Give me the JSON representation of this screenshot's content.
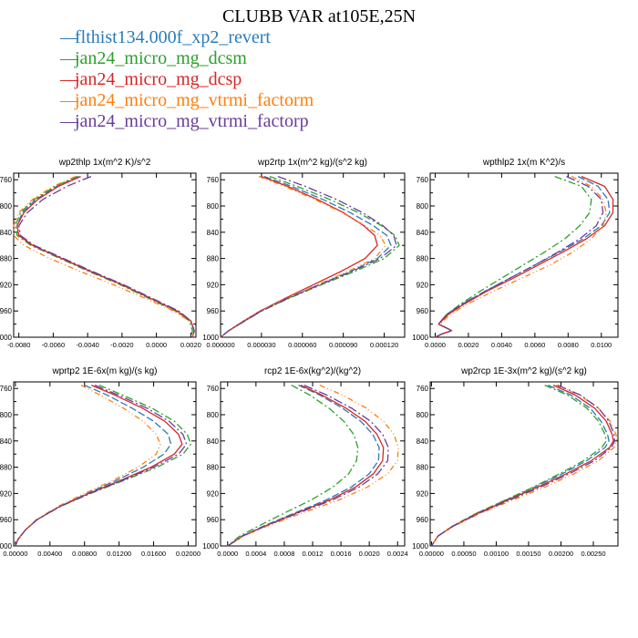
{
  "title": "CLUBB VAR at105E,25N",
  "legend": [
    {
      "label": "flthist134.000f_xp2_revert",
      "color": "#2b7bb9"
    },
    {
      "label": "jan24_micro_mg_dcsm",
      "color": "#2ca02c"
    },
    {
      "label": "jan24_micro_mg_dcsp",
      "color": "#d62728"
    },
    {
      "label": "jan24_micro_mg_vtrmi_factorm",
      "color": "#ff7f0e"
    },
    {
      "label": "jan24_micro_mg_vtrmi_factorp",
      "color": "#6a3d9a"
    }
  ],
  "chart_data": [
    {
      "type": "line",
      "title": "wp2thlp   1x(m^2 K)/s^2",
      "ylabel": "",
      "xlabel": "",
      "ylim": [
        1000,
        750
      ],
      "yticks": [
        760,
        800,
        840,
        880,
        920,
        960,
        1000
      ],
      "xlim": [
        -0.0083,
        0.0023
      ],
      "xticks": [
        -0.008,
        -0.006,
        -0.004,
        -0.002,
        0.0,
        0.002
      ],
      "xtick_labels": [
        "-0.0080",
        "-0.0060",
        "-0.0040",
        "-0.0020",
        "0.0000",
        "0.0020"
      ],
      "y": [
        755,
        770,
        790,
        810,
        830,
        845,
        860,
        880,
        900,
        920,
        940,
        960,
        975,
        990,
        1000
      ],
      "series": [
        {
          "values": [
            -0.0045,
            -0.0058,
            -0.007,
            -0.0078,
            -0.0081,
            -0.008,
            -0.0072,
            -0.0055,
            -0.0038,
            -0.002,
            -0.0004,
            0.0012,
            0.002,
            0.0022,
            0.0021
          ]
        },
        {
          "values": [
            -0.0046,
            -0.0059,
            -0.0071,
            -0.0079,
            -0.0082,
            -0.0081,
            -0.0073,
            -0.0056,
            -0.0039,
            -0.0021,
            -0.0005,
            0.0011,
            0.0019,
            0.0021,
            0.002
          ]
        },
        {
          "values": [
            -0.0044,
            -0.0057,
            -0.0069,
            -0.0077,
            -0.0081,
            -0.008,
            -0.0072,
            -0.0055,
            -0.0038,
            -0.002,
            -0.0004,
            0.0012,
            0.002,
            0.0022,
            0.0021
          ]
        },
        {
          "values": [
            -0.0047,
            -0.006,
            -0.0072,
            -0.008,
            -0.0083,
            -0.0083,
            -0.0077,
            -0.0062,
            -0.0044,
            -0.0025,
            -0.0007,
            0.001,
            0.0019,
            0.0022,
            0.0021
          ]
        },
        {
          "values": [
            -0.0038,
            -0.0052,
            -0.0066,
            -0.0075,
            -0.008,
            -0.0079,
            -0.0071,
            -0.0054,
            -0.0037,
            -0.0019,
            -0.0003,
            0.0013,
            0.002,
            0.0022,
            0.0021
          ]
        }
      ]
    },
    {
      "type": "line",
      "title": "wp2rtp   1x(m^2 kg)/(s^2 kg)",
      "ylabel": "",
      "xlabel": "",
      "ylim": [
        1000,
        750
      ],
      "yticks": [
        760,
        800,
        840,
        880,
        920,
        960,
        1000
      ],
      "xlim": [
        0.0,
        0.000135
      ],
      "xticks": [
        0.0,
        3e-05,
        6e-05,
        9e-05,
        0.00012
      ],
      "xtick_labels": [
        "0.000000",
        "0.000030",
        "0.000060",
        "0.000090",
        "0.000120"
      ],
      "y": [
        755,
        770,
        790,
        810,
        830,
        845,
        860,
        880,
        900,
        920,
        940,
        960,
        975,
        990,
        1000
      ],
      "series": [
        {
          "values": [
            3.2e-05,
            5.2e-05,
            7.5e-05,
            9.5e-05,
            0.000112,
            0.000122,
            0.000125,
            0.000115,
            9.5e-05,
            7.2e-05,
            5e-05,
            3e-05,
            1.8e-05,
            6e-06,
            0.0
          ]
        },
        {
          "values": [
            3.6e-05,
            5.6e-05,
            8e-05,
            0.000101,
            0.000118,
            0.000128,
            0.000131,
            0.00012,
            9.8e-05,
            7.4e-05,
            5.1e-05,
            3e-05,
            1.8e-05,
            6e-06,
            0.0
          ]
        },
        {
          "values": [
            3e-05,
            4.9e-05,
            7.1e-05,
            9e-05,
            0.000105,
            0.000113,
            0.000115,
            0.000106,
            8.8e-05,
            6.8e-05,
            4.8e-05,
            2.9e-05,
            1.7e-05,
            6e-06,
            0.0
          ]
        },
        {
          "values": [
            2.8e-05,
            4.7e-05,
            6.9e-05,
            8.9e-05,
            0.000106,
            0.000117,
            0.000121,
            0.000113,
            9.3e-05,
            7.1e-05,
            4.9e-05,
            2.9e-05,
            1.7e-05,
            6e-06,
            0.0
          ]
        },
        {
          "values": [
            4.2e-05,
            6.2e-05,
            8.5e-05,
            0.000104,
            0.000119,
            0.000127,
            0.000129,
            0.000117,
            9.6e-05,
            7.3e-05,
            5e-05,
            3e-05,
            1.8e-05,
            6e-06,
            0.0
          ]
        }
      ]
    },
    {
      "type": "line",
      "title": "wpthlp2   1x(m K^2)/s",
      "ylabel": "",
      "xlabel": "",
      "ylim": [
        1000,
        750
      ],
      "yticks": [
        760,
        800,
        840,
        880,
        920,
        960,
        1000
      ],
      "xlim": [
        -0.0003,
        0.011
      ],
      "xticks": [
        0.0,
        0.002,
        0.004,
        0.006,
        0.008,
        0.01
      ],
      "xtick_labels": [
        "0.0000",
        "0.0020",
        "0.0040",
        "0.0060",
        "0.0080",
        "0.0100"
      ],
      "y": [
        755,
        770,
        790,
        810,
        830,
        850,
        870,
        890,
        910,
        930,
        950,
        965,
        980,
        990,
        995,
        1000
      ],
      "series": [
        {
          "values": [
            0.0086,
            0.0098,
            0.0104,
            0.0105,
            0.01,
            0.0089,
            0.0075,
            0.006,
            0.0045,
            0.003,
            0.0016,
            0.0007,
            0.0002,
            0.001,
            0.0004,
            0.0
          ]
        },
        {
          "values": [
            0.0072,
            0.0088,
            0.0094,
            0.0093,
            0.0087,
            0.0078,
            0.0066,
            0.0053,
            0.004,
            0.0027,
            0.0015,
            0.0007,
            0.0002,
            0.001,
            0.0004,
            0.0
          ]
        },
        {
          "values": [
            0.0088,
            0.0102,
            0.0107,
            0.0107,
            0.0102,
            0.0091,
            0.0077,
            0.0062,
            0.0047,
            0.0031,
            0.0017,
            0.0008,
            0.0002,
            0.001,
            0.0004,
            0.0
          ]
        },
        {
          "values": [
            0.0082,
            0.0094,
            0.0101,
            0.0103,
            0.0101,
            0.0094,
            0.0083,
            0.0069,
            0.0052,
            0.0035,
            0.0019,
            0.0009,
            0.0003,
            0.001,
            0.0004,
            0.0
          ]
        },
        {
          "values": [
            0.0079,
            0.0092,
            0.01,
            0.0101,
            0.0097,
            0.0087,
            0.0074,
            0.006,
            0.0045,
            0.003,
            0.0016,
            0.0007,
            0.0002,
            0.001,
            0.0004,
            0.0
          ]
        }
      ]
    },
    {
      "type": "line",
      "title": "wprtp2   1E-6x(m kg)/(s kg)",
      "ylabel": "",
      "xlabel": "",
      "ylim": [
        1000,
        750
      ],
      "yticks": [
        760,
        800,
        840,
        880,
        920,
        960,
        1000
      ],
      "xlim": [
        -0.0002,
        0.0209
      ],
      "xticks": [
        0.0,
        0.004,
        0.008,
        0.012,
        0.016,
        0.02
      ],
      "xtick_labels": [
        "0.00000",
        "0.00400",
        "0.00800",
        "0.01200",
        "0.01600",
        "0.02000"
      ],
      "y": [
        755,
        770,
        790,
        810,
        830,
        845,
        860,
        880,
        900,
        920,
        940,
        960,
        975,
        990,
        1000
      ],
      "series": [
        {
          "values": [
            0.008,
            0.0106,
            0.0135,
            0.016,
            0.0177,
            0.018,
            0.0172,
            0.0148,
            0.0117,
            0.0083,
            0.0051,
            0.0025,
            0.0012,
            0.0003,
            0.0
          ]
        },
        {
          "values": [
            0.0097,
            0.0124,
            0.0158,
            0.0184,
            0.0199,
            0.0203,
            0.0194,
            0.0164,
            0.0126,
            0.0087,
            0.0052,
            0.0025,
            0.0012,
            0.0003,
            0.0
          ]
        },
        {
          "values": [
            0.0088,
            0.0115,
            0.0147,
            0.0173,
            0.0189,
            0.0193,
            0.0184,
            0.0157,
            0.0122,
            0.0085,
            0.0051,
            0.0025,
            0.0012,
            0.0003,
            0.0
          ]
        },
        {
          "values": [
            0.0076,
            0.0098,
            0.0125,
            0.0148,
            0.0163,
            0.0168,
            0.0163,
            0.0142,
            0.0113,
            0.008,
            0.0049,
            0.0024,
            0.0012,
            0.0003,
            0.0
          ]
        },
        {
          "values": [
            0.0092,
            0.0119,
            0.0152,
            0.0178,
            0.0194,
            0.0198,
            0.0189,
            0.016,
            0.0124,
            0.0086,
            0.0051,
            0.0025,
            0.0012,
            0.0003,
            0.0
          ]
        }
      ]
    },
    {
      "type": "line",
      "title": "rcp2   1E-6x(kg^2)/(kg^2)",
      "ylabel": "",
      "xlabel": "",
      "ylim": [
        1000,
        750
      ],
      "yticks": [
        760,
        800,
        840,
        880,
        920,
        960,
        1000
      ],
      "xlim": [
        -0.0001,
        0.0025
      ],
      "xticks": [
        0.0,
        0.0004,
        0.0008,
        0.0012,
        0.0016,
        0.002,
        0.0024
      ],
      "xtick_labels": [
        "0.0000",
        "0.0004",
        "0.0008",
        "0.0012",
        "0.0016",
        "0.0020",
        "0.0024"
      ],
      "y": [
        755,
        770,
        790,
        810,
        830,
        850,
        870,
        890,
        910,
        930,
        950,
        970,
        985,
        1000
      ],
      "series": [
        {
          "values": [
            0.001,
            0.0013,
            0.00162,
            0.00188,
            0.00205,
            0.00214,
            0.00213,
            0.002,
            0.00175,
            0.00139,
            0.00094,
            0.0005,
            0.0002,
            0.0
          ]
        },
        {
          "values": [
            0.0009,
            0.00116,
            0.00143,
            0.00164,
            0.00178,
            0.00184,
            0.00182,
            0.00171,
            0.00149,
            0.00118,
            0.0008,
            0.00043,
            0.00017,
            0.0
          ]
        },
        {
          "values": [
            0.00103,
            0.00133,
            0.00167,
            0.00194,
            0.00211,
            0.0022,
            0.00219,
            0.00206,
            0.00181,
            0.00144,
            0.00097,
            0.00052,
            0.00021,
            0.0
          ]
        },
        {
          "values": [
            0.0013,
            0.00162,
            0.00196,
            0.0022,
            0.00235,
            0.00241,
            0.0024,
            0.00226,
            0.00198,
            0.00157,
            0.00105,
            0.00055,
            0.00022,
            0.0
          ]
        },
        {
          "values": [
            0.00108,
            0.0014,
            0.00175,
            0.00202,
            0.00219,
            0.00227,
            0.00226,
            0.00212,
            0.00186,
            0.00148,
            0.00099,
            0.00053,
            0.00021,
            0.0
          ]
        }
      ]
    },
    {
      "type": "line",
      "title": "wp2rcp   1E-3x(m^2 kg)/(s^2 kg)",
      "ylabel": "",
      "xlabel": "",
      "ylim": [
        1000,
        750
      ],
      "yticks": [
        760,
        800,
        840,
        880,
        920,
        960,
        1000
      ],
      "xlim": [
        -2e-05,
        0.00288
      ],
      "xticks": [
        0.0,
        0.0005,
        0.001,
        0.0015,
        0.002,
        0.0025
      ],
      "xtick_labels": [
        "0.00000",
        "0.00050",
        "0.00100",
        "0.00150",
        "0.00200",
        "0.00250"
      ],
      "y": [
        755,
        770,
        790,
        810,
        830,
        840,
        850,
        870,
        890,
        910,
        930,
        950,
        970,
        985,
        1000
      ],
      "series": [
        {
          "values": [
            0.0018,
            0.00215,
            0.00245,
            0.00262,
            0.00272,
            0.00274,
            0.00268,
            0.0024,
            0.00202,
            0.0016,
            0.00115,
            0.0007,
            0.00032,
            0.0001,
            0.0
          ]
        },
        {
          "values": [
            0.00175,
            0.0021,
            0.0024,
            0.00258,
            0.00268,
            0.0027,
            0.00263,
            0.00235,
            0.00198,
            0.00158,
            0.00114,
            0.0007,
            0.00032,
            0.0001,
            0.0
          ]
        },
        {
          "values": [
            0.00188,
            0.00222,
            0.00252,
            0.0027,
            0.00279,
            0.00281,
            0.00275,
            0.00247,
            0.00208,
            0.00165,
            0.00118,
            0.00072,
            0.00033,
            0.0001,
            0.0
          ]
        },
        {
          "values": [
            0.00192,
            0.00228,
            0.00258,
            0.00276,
            0.00285,
            0.00286,
            0.00282,
            0.00258,
            0.0022,
            0.00176,
            0.00126,
            0.00076,
            0.00034,
            0.0001,
            0.0
          ]
        },
        {
          "values": [
            0.00195,
            0.0023,
            0.00258,
            0.00274,
            0.00282,
            0.00283,
            0.00278,
            0.00252,
            0.00213,
            0.00169,
            0.00121,
            0.00074,
            0.00033,
            0.0001,
            0.0
          ]
        }
      ]
    }
  ]
}
